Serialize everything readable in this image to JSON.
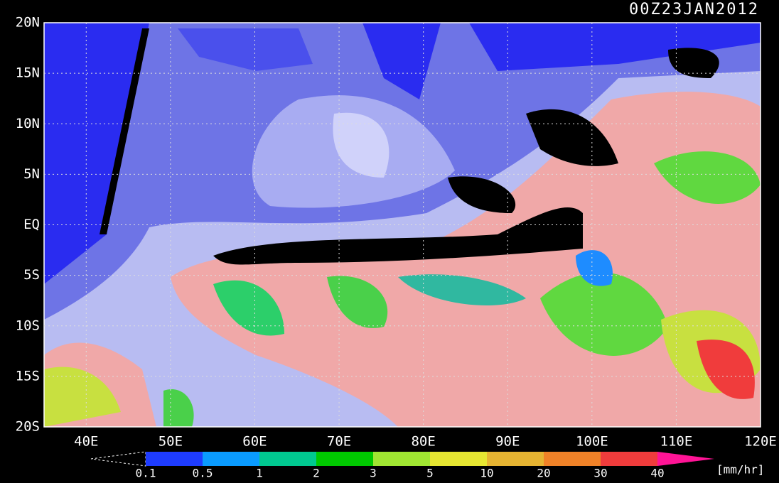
{
  "title": "00Z23JAN2012",
  "lat_labels": [
    "20N",
    "15N",
    "10N",
    "5N",
    "EQ",
    "5S",
    "10S",
    "15S",
    "20S"
  ],
  "lon_labels": [
    "40E",
    "50E",
    "60E",
    "70E",
    "80E",
    "90E",
    "100E",
    "110E",
    "120E"
  ],
  "colorbar": {
    "labels": [
      "0.1",
      "0.5",
      "1",
      "2",
      "3",
      "5",
      "10",
      "20",
      "30",
      "40"
    ],
    "colors": [
      "#1e3cff",
      "#0a9bff",
      "#00c890",
      "#00c800",
      "#a0e632",
      "#e6e632",
      "#e6b432",
      "#f08228",
      "#f03c3c",
      "#ff1496"
    ],
    "unit": "[mm/hr]"
  }
}
